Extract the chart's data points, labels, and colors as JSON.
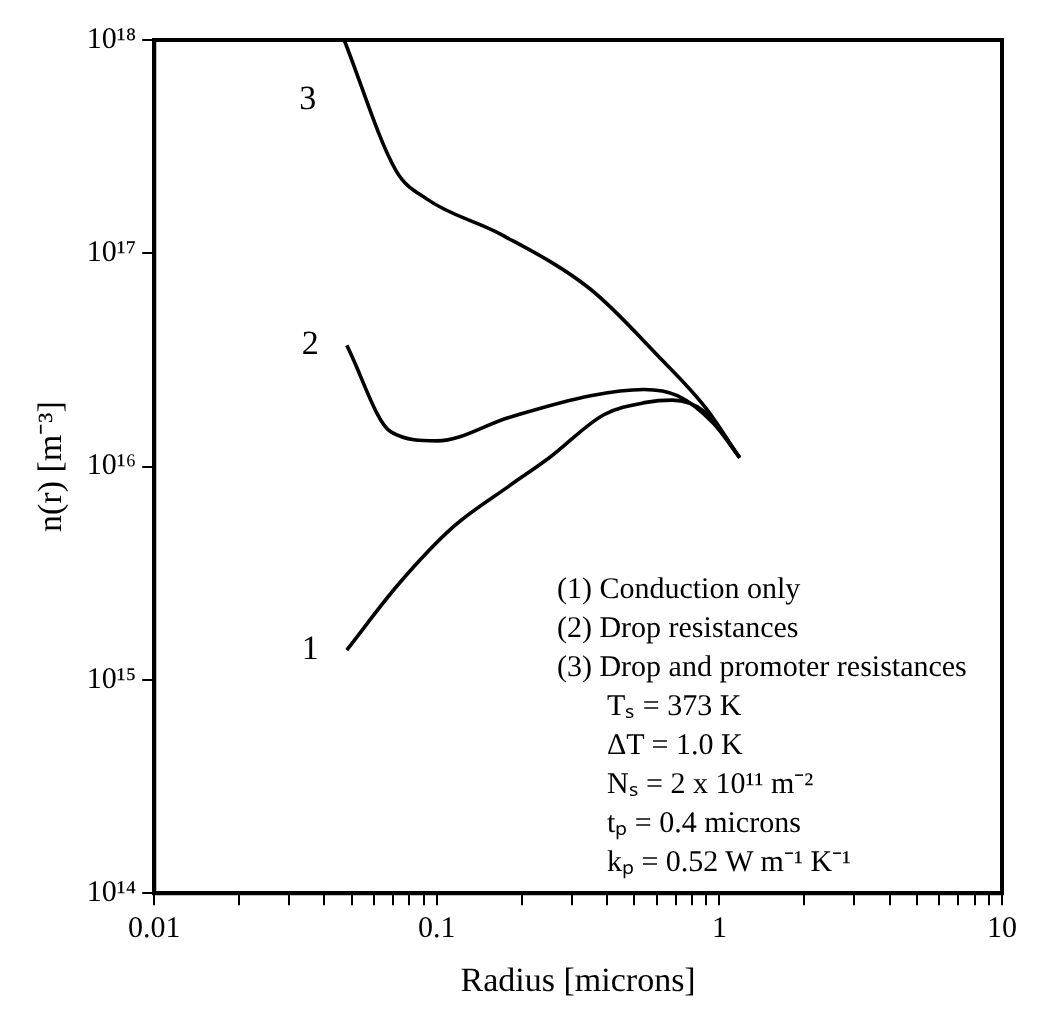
{
  "chart_data": {
    "type": "line",
    "xlabel": "Radius [microns]",
    "ylabel": "n(r) [m⁻³]",
    "log": "xy",
    "grid": false,
    "legend": false,
    "marker": "none",
    "line_style": "solid",
    "xlim": [
      0.01,
      10
    ],
    "ylim": [
      100000000000000.0,
      1e+18
    ],
    "xticks": [
      0.01,
      {
        "value": 0.02,
        "label": null
      },
      {
        "value": 0.03,
        "label": null
      },
      {
        "value": 0.04,
        "label": null
      },
      {
        "value": 0.05,
        "label": null
      },
      {
        "value": 0.06,
        "label": null
      },
      {
        "value": 0.07,
        "label": null
      },
      {
        "value": 0.08,
        "label": null
      },
      {
        "value": 0.09,
        "label": null
      },
      0.1,
      {
        "value": 0.2,
        "label": null
      },
      {
        "value": 0.3,
        "label": null
      },
      {
        "value": 0.4,
        "label": null
      },
      {
        "value": 0.5,
        "label": null
      },
      {
        "value": 0.6,
        "label": null
      },
      {
        "value": 0.7,
        "label": null
      },
      {
        "value": 0.8,
        "label": null
      },
      {
        "value": 0.9,
        "label": null
      },
      1,
      {
        "value": 2,
        "label": null
      },
      {
        "value": 3,
        "label": null
      },
      {
        "value": 4,
        "label": null
      },
      {
        "value": 5,
        "label": null
      },
      {
        "value": 6,
        "label": null
      },
      {
        "value": 7,
        "label": null
      },
      {
        "value": 8,
        "label": null
      },
      {
        "value": 9,
        "label": null
      },
      10
    ],
    "yticks": [
      {
        "value": 100000000000000.0,
        "label": "10¹⁴"
      },
      {
        "value": 1000000000000000.0,
        "label": "10¹⁵"
      },
      {
        "value": 1e+16,
        "label": "10¹⁶"
      },
      {
        "value": 1e+17,
        "label": "10¹⁷"
      },
      {
        "value": 1e+18,
        "label": "10¹⁸"
      }
    ],
    "series": [
      {
        "name": "1",
        "color": "#000000",
        "x": [
          0.048,
          0.073,
          0.114,
          0.18,
          0.25,
          0.39,
          0.55,
          0.68,
          0.89,
          1.18
        ],
        "values": [
          1380000000000000.0,
          2800000000000000.0,
          5200000000000000.0,
          8100000000000000.0,
          1.1e+16,
          1.75e+16,
          2e+16,
          2.05e+16,
          1.8e+16,
          1.1e+16
        ]
      },
      {
        "name": "2",
        "color": "#000000",
        "x": [
          0.048,
          0.069,
          0.1,
          0.18,
          0.35,
          0.54,
          0.71,
          0.95,
          1.18
        ],
        "values": [
          3.7e+16,
          1.45e+16,
          1.32e+16,
          1.7e+16,
          2.15e+16,
          2.3e+16,
          2.15e+16,
          1.6e+16,
          1.1e+16
        ]
      },
      {
        "name": "3",
        "color": "#000000",
        "x": [
          0.047,
          0.0716,
          0.092,
          0.168,
          0.349,
          0.607,
          0.89,
          1.18
        ],
        "values": [
          1e+18,
          2.45e+17,
          1.8e+17,
          1.23e+17,
          6.8e+16,
          3.3e+16,
          1.9e+16,
          1.1e+16
        ]
      }
    ],
    "annotations": [
      "(1) Conduction only",
      "(2) Drop resistances",
      "(3) Drop and promoter resistances",
      "Tₛ = 373 K",
      "ΔT = 1.0 K",
      "Nₛ = 2 x 10¹¹ m⁻²",
      "tₚ = 0.4 microns",
      "kₚ = 0.52 W m⁻¹ K⁻¹"
    ]
  }
}
